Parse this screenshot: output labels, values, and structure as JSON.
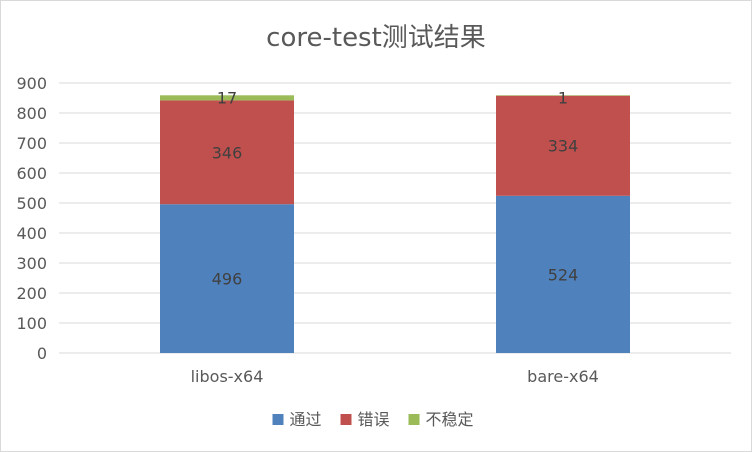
{
  "chart_data": {
    "type": "bar",
    "stacked": true,
    "title": "core-test测试结果",
    "categories": [
      "libos-x64",
      "bare-x64"
    ],
    "series": [
      {
        "name": "通过",
        "values": [
          496,
          524
        ],
        "color": "#4f81bd"
      },
      {
        "name": "错误",
        "values": [
          346,
          334
        ],
        "color": "#c0504d"
      },
      {
        "name": "不稳定",
        "values": [
          17,
          1
        ],
        "color": "#9bbb59"
      }
    ],
    "ylim": [
      0,
      900
    ],
    "yticks": [
      0,
      100,
      200,
      300,
      400,
      500,
      600,
      700,
      800,
      900
    ],
    "grid": true,
    "legend": "bottom",
    "xlabel": "",
    "ylabel": ""
  }
}
